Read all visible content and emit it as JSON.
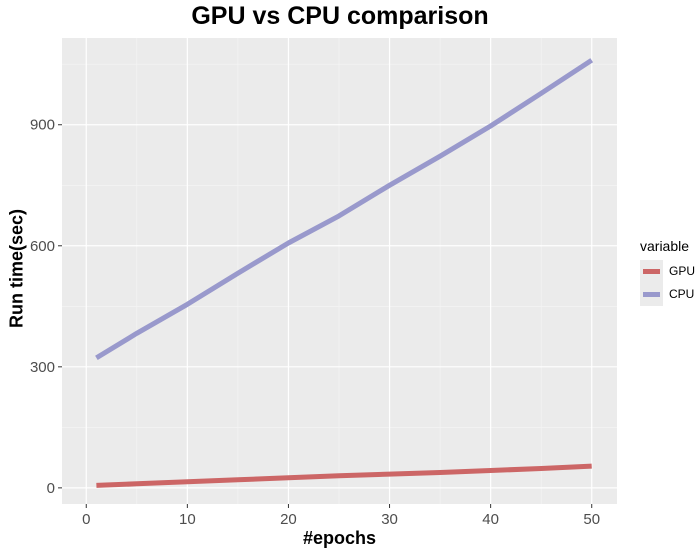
{
  "chart_data": {
    "type": "line",
    "title": "GPU vs CPU comparison",
    "xlabel": "#epochs",
    "ylabel": "Run time(sec)",
    "xlim": [
      -2.4,
      52.5
    ],
    "ylim": [
      -40,
      1115
    ],
    "x_ticks": [
      0,
      10,
      20,
      30,
      40,
      50
    ],
    "y_ticks": [
      0,
      300,
      600,
      900
    ],
    "grid": true,
    "legend": {
      "title": "variable",
      "position": "right"
    },
    "series": [
      {
        "name": "GPU",
        "color": "#cc6666",
        "x": [
          1,
          5,
          10,
          15,
          20,
          25,
          30,
          35,
          40,
          45,
          50
        ],
        "y": [
          6,
          10,
          15,
          20,
          25,
          30,
          34,
          38,
          43,
          48,
          54
        ]
      },
      {
        "name": "CPU",
        "color": "#9999cc",
        "x": [
          1,
          5,
          10,
          15,
          20,
          25,
          30,
          35,
          40,
          45,
          50
        ],
        "y": [
          322,
          383,
          455,
          532,
          607,
          674,
          750,
          822,
          897,
          978,
          1060
        ]
      }
    ]
  }
}
